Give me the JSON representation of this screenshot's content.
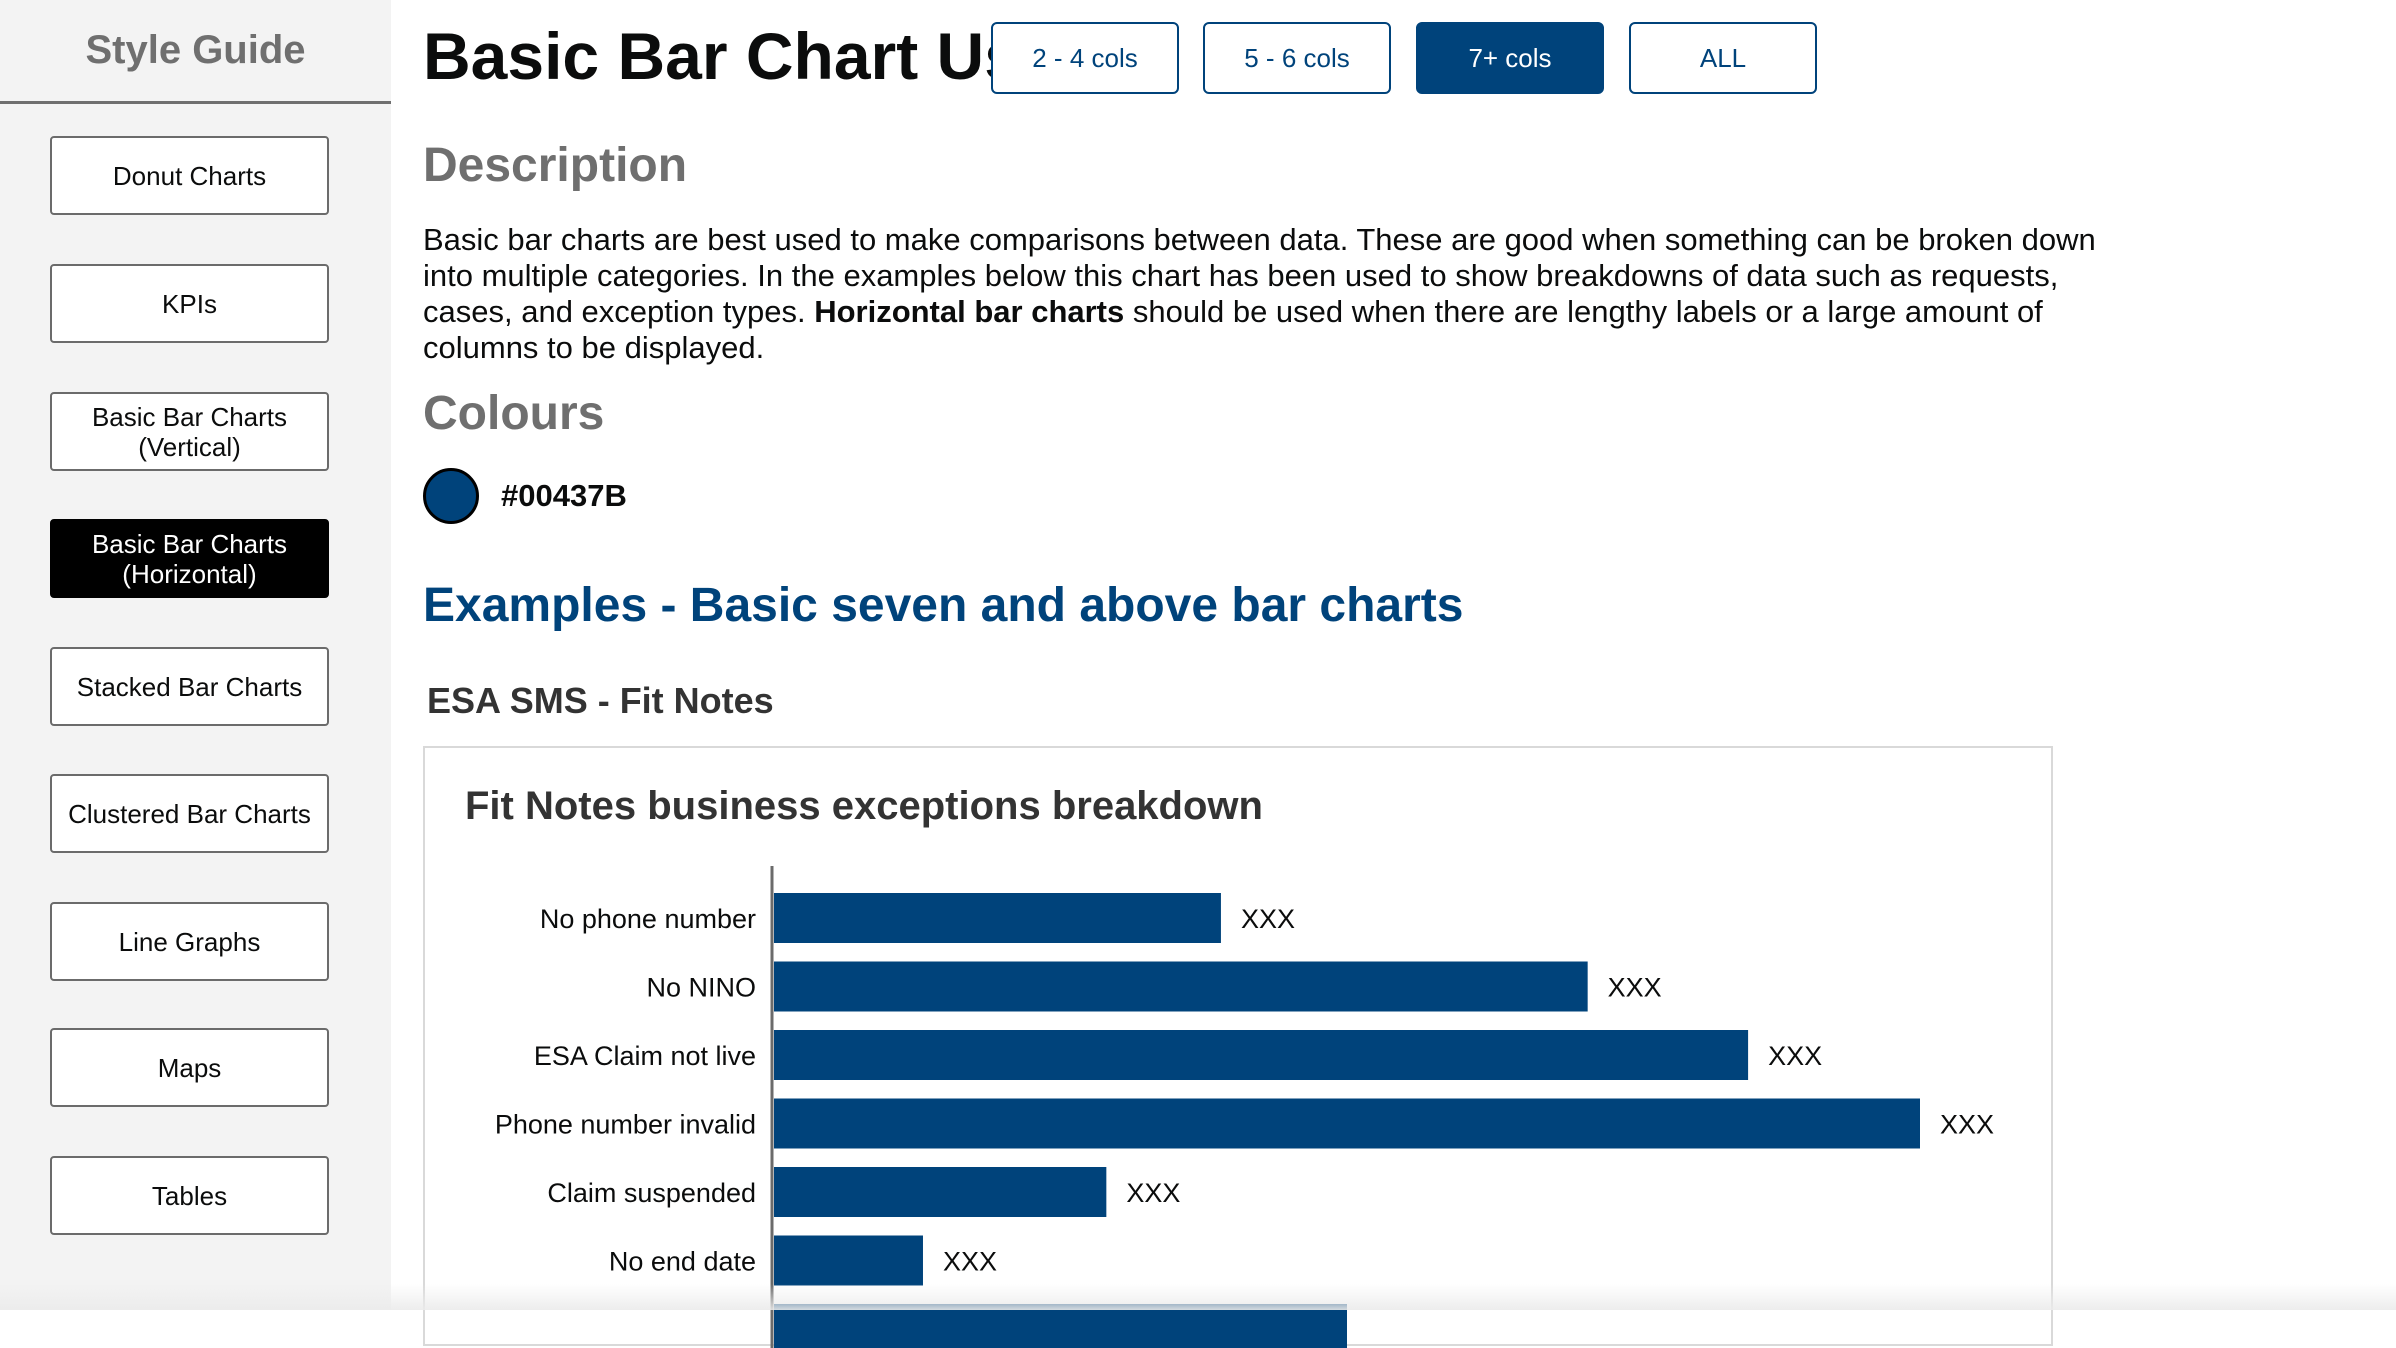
{
  "sidebar": {
    "title": "Style Guide",
    "items": [
      {
        "label": "Donut Charts"
      },
      {
        "label": "KPIs"
      },
      {
        "label": "Basic Bar Charts\n(Vertical)"
      },
      {
        "label": "Basic Bar Charts\n(Horizontal)",
        "active": true
      },
      {
        "label": "Stacked Bar Charts"
      },
      {
        "label": "Clustered Bar Charts"
      },
      {
        "label": "Line Graphs"
      },
      {
        "label": "Maps"
      },
      {
        "label": "Tables"
      }
    ]
  },
  "header": {
    "title": "Basic Bar Chart Usages",
    "filters": [
      {
        "label": "2 - 4 cols"
      },
      {
        "label": "5 - 6 cols"
      },
      {
        "label": "7+ cols",
        "active": true
      },
      {
        "label": "ALL"
      }
    ]
  },
  "description": {
    "heading": "Description",
    "text_1": "Basic bar charts are best used to make comparisons between data.  These are good when something can be broken down into multiple categories.  In the examples below this chart has been used to show breakdowns of data such as requests, cases, and exception types. ",
    "bold": "Horizontal bar charts",
    "text_2": " should be used when there are lengthy labels or a large amount of columns to be displayed."
  },
  "colours": {
    "heading": "Colours",
    "swatch": "#00437B",
    "swatch_label": "#00437B"
  },
  "examples": {
    "heading": "Examples - Basic seven and above bar charts",
    "subheading": "ESA SMS - Fit Notes"
  },
  "chart_data": {
    "type": "bar",
    "orientation": "horizontal",
    "title": "Fit Notes business exceptions breakdown",
    "categories": [
      "No phone number",
      "No NINO",
      "ESA Claim not live",
      "Phone number invalid",
      "Claim suspended",
      "No end date"
    ],
    "values": [
      39,
      71,
      85,
      100,
      29,
      13
    ],
    "data_labels": [
      "XXX",
      "XXX",
      "XXX",
      "XXX",
      "XXX",
      "XXX"
    ],
    "partial_next_bar_value": 50,
    "xlim": [
      0,
      100
    ],
    "color": "#00437B",
    "grid": false
  }
}
